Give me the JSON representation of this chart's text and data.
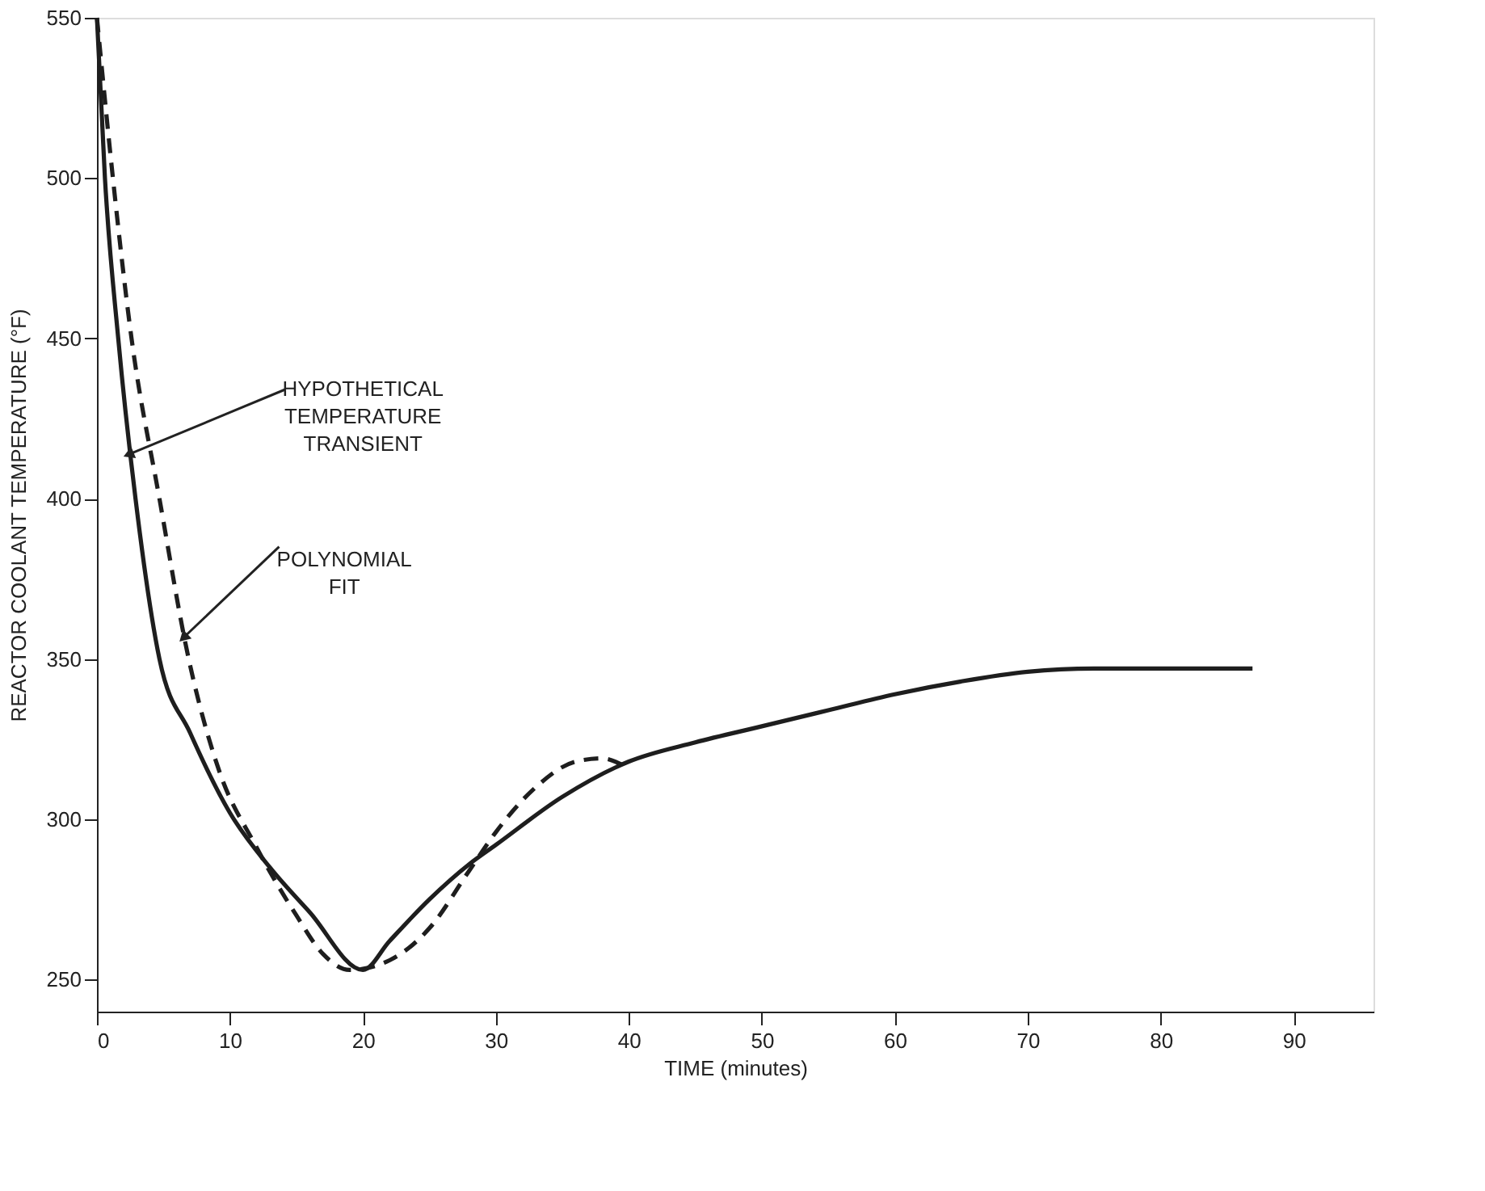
{
  "chart_data": {
    "type": "line",
    "xlabel": "TIME (minutes)",
    "ylabel": "REACTOR COOLANT TEMPERATURE (°F)",
    "xlim": [
      0,
      96
    ],
    "ylim": [
      240,
      550
    ],
    "xticks": [
      0,
      10,
      20,
      30,
      40,
      50,
      60,
      70,
      80,
      90
    ],
    "yticks": [
      250,
      300,
      350,
      400,
      450,
      500,
      550
    ],
    "grid": false,
    "marker": "none",
    "series": [
      {
        "color": "#1e1e1e",
        "line_style": "solid",
        "x": [
          0,
          0.6,
          1.6,
          2.9,
          4.7,
          7,
          10,
          13,
          16,
          20,
          22,
          25,
          28,
          30,
          35,
          40,
          45,
          50,
          55,
          60,
          65,
          70,
          75,
          80,
          86.9
        ],
        "values": [
          550,
          500,
          450,
          400,
          350,
          327,
          302,
          285,
          271,
          253,
          262,
          275,
          286,
          292,
          307,
          318,
          324,
          329,
          334,
          339,
          343,
          346,
          347,
          347,
          347
        ]
      },
      {
        "color": "#1e1e1e",
        "line_style": "dashed",
        "x": [
          0,
          1.2,
          2.6,
          4.7,
          6.9,
          9.2,
          11.9,
          15,
          17,
          19,
          22,
          25,
          28,
          30,
          33,
          36,
          38,
          39.5
        ],
        "values": [
          550,
          500,
          450,
          400,
          350,
          315,
          292,
          270,
          258,
          253,
          256,
          266,
          284,
          296,
          310,
          318,
          319,
          317
        ]
      }
    ],
    "annotations": [
      {
        "text": "HYPOTHETICAL\nTEMPERATURE\nTRANSIENT",
        "x": 2.5,
        "y": 414
      },
      {
        "text": "POLYNOMIAL\nFIT",
        "x": 6.6,
        "y": 357
      }
    ]
  }
}
